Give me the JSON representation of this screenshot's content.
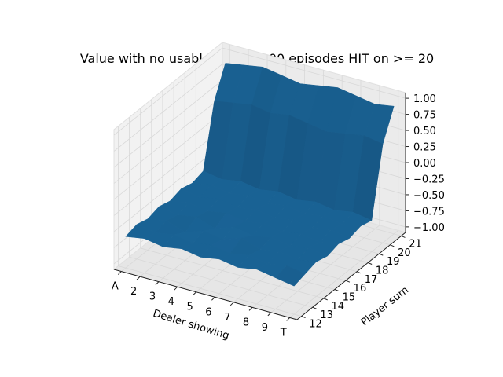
{
  "chart_data": {
    "type": "surface",
    "title": "Value with no usable ace 10,000 episodes HIT on >= 20",
    "xlabel": "Dealer showing",
    "ylabel": "Player sum",
    "x_ticks": [
      "A",
      "2",
      "3",
      "4",
      "5",
      "6",
      "7",
      "8",
      "9",
      "T"
    ],
    "y_ticks": [
      "12",
      "13",
      "14",
      "15",
      "16",
      "17",
      "18",
      "19",
      "20",
      "21"
    ],
    "z_ticks": [
      "−1.00",
      "−0.75",
      "−0.50",
      "−0.25",
      "0.00",
      "0.25",
      "0.50",
      "0.75",
      "1.00"
    ],
    "zlim": [
      -1.0,
      1.0
    ],
    "surface_color": "#1f77b4",
    "values_by_player_sum": [
      {
        "player_sum": 12,
        "values": [
          -0.6,
          -0.55,
          -0.6,
          -0.55,
          -0.6,
          -0.55,
          -0.6,
          -0.55,
          -0.6,
          -0.65
        ]
      },
      {
        "player_sum": 13,
        "values": [
          -0.55,
          -0.6,
          -0.55,
          -0.6,
          -0.55,
          -0.6,
          -0.55,
          -0.6,
          -0.55,
          -0.6
        ]
      },
      {
        "player_sum": 14,
        "values": [
          -0.6,
          -0.55,
          -0.65,
          -0.55,
          -0.6,
          -0.5,
          -0.6,
          -0.55,
          -0.6,
          -0.55
        ]
      },
      {
        "player_sum": 15,
        "values": [
          -0.55,
          -0.6,
          -0.55,
          -0.65,
          -0.55,
          -0.6,
          -0.55,
          -0.6,
          -0.55,
          -0.6
        ]
      },
      {
        "player_sum": 16,
        "values": [
          -0.6,
          -0.55,
          -0.6,
          -0.55,
          -0.6,
          -0.55,
          -0.6,
          -0.55,
          -0.6,
          -0.55
        ]
      },
      {
        "player_sum": 17,
        "values": [
          -0.55,
          -0.6,
          -0.55,
          -0.6,
          -0.55,
          -0.6,
          -0.55,
          -0.6,
          -0.55,
          -0.6
        ]
      },
      {
        "player_sum": 18,
        "values": [
          -0.6,
          -0.55,
          -0.6,
          -0.55,
          -0.6,
          -0.55,
          -0.6,
          -0.55,
          -0.6,
          -0.55
        ]
      },
      {
        "player_sum": 19,
        "values": [
          -0.55,
          -0.6,
          -0.55,
          -0.6,
          -0.55,
          -0.6,
          -0.55,
          -0.6,
          -0.55,
          -0.6
        ]
      },
      {
        "player_sum": 20,
        "values": [
          0.4,
          0.45,
          0.5,
          0.45,
          0.5,
          0.45,
          0.4,
          0.45,
          0.5,
          0.45
        ]
      },
      {
        "player_sum": 21,
        "values": [
          0.85,
          0.9,
          0.95,
          0.9,
          0.85,
          0.9,
          0.95,
          0.9,
          0.85,
          0.9
        ]
      }
    ]
  }
}
